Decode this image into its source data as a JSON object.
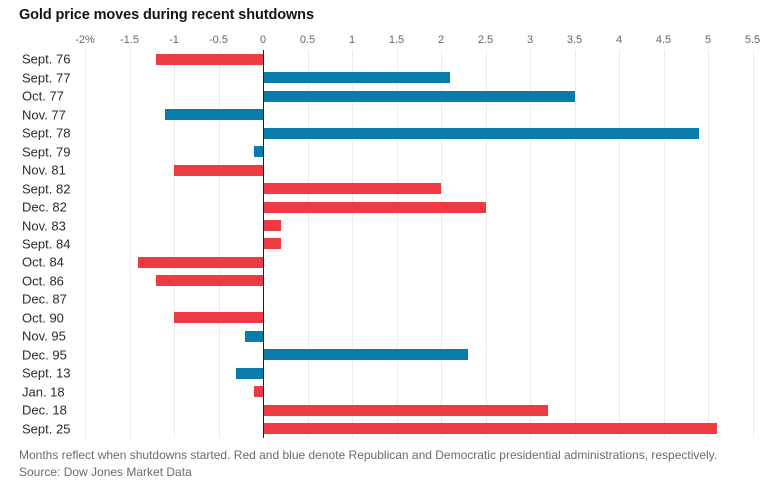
{
  "title": "Gold price moves during recent shutdowns",
  "footer": {
    "note": "Months reflect when shutdowns started. Red and blue denote Republican and Democratic presidential administrations, respectively.",
    "source": "Source: Dow Jones Market Data"
  },
  "colors": {
    "republican": "#ee3a43",
    "democratic": "#0a7cab",
    "gridline": "#ebebeb",
    "axis": "#222222"
  },
  "chart_data": {
    "type": "bar",
    "orientation": "horizontal",
    "title": "Gold price moves during recent shutdowns",
    "unit": "percent",
    "xlim": [
      -2.07,
      5.75
    ],
    "x_ticks": [
      -2,
      -1.5,
      -1,
      -0.5,
      0,
      0.5,
      1,
      1.5,
      2,
      2.5,
      3,
      3.5,
      4,
      4.5,
      5,
      5.5
    ],
    "x_tick_labels": [
      "-2%",
      "-1.5",
      "-1",
      "-0.5",
      "0",
      "0.5",
      "1",
      "1.5",
      "2",
      "2.5",
      "3",
      "3.5",
      "4",
      "4.5",
      "5",
      "5.5"
    ],
    "grid": true,
    "legend": {
      "red": "Republican administration",
      "blue": "Democratic administration"
    },
    "categories": [
      "Sept. 76",
      "Sept. 77",
      "Oct. 77",
      "Nov. 77",
      "Sept. 78",
      "Sept. 79",
      "Nov. 81",
      "Sept. 82",
      "Dec. 82",
      "Nov. 83",
      "Sept. 84",
      "Oct. 84",
      "Oct. 86",
      "Dec. 87",
      "Oct. 90",
      "Nov. 95",
      "Dec. 95",
      "Sept. 13",
      "Jan. 18",
      "Dec. 18",
      "Sept. 25"
    ],
    "values": [
      -1.2,
      2.1,
      3.5,
      -1.1,
      4.9,
      -0.1,
      -1.0,
      2.0,
      2.5,
      0.2,
      0.2,
      -1.4,
      -1.2,
      0.0,
      -1.0,
      -0.2,
      2.3,
      -0.3,
      -0.1,
      3.2,
      5.1
    ],
    "parties": [
      "R",
      "D",
      "D",
      "D",
      "D",
      "D",
      "R",
      "R",
      "R",
      "R",
      "R",
      "R",
      "R",
      "R",
      "R",
      "D",
      "D",
      "D",
      "R",
      "R",
      "R"
    ]
  }
}
